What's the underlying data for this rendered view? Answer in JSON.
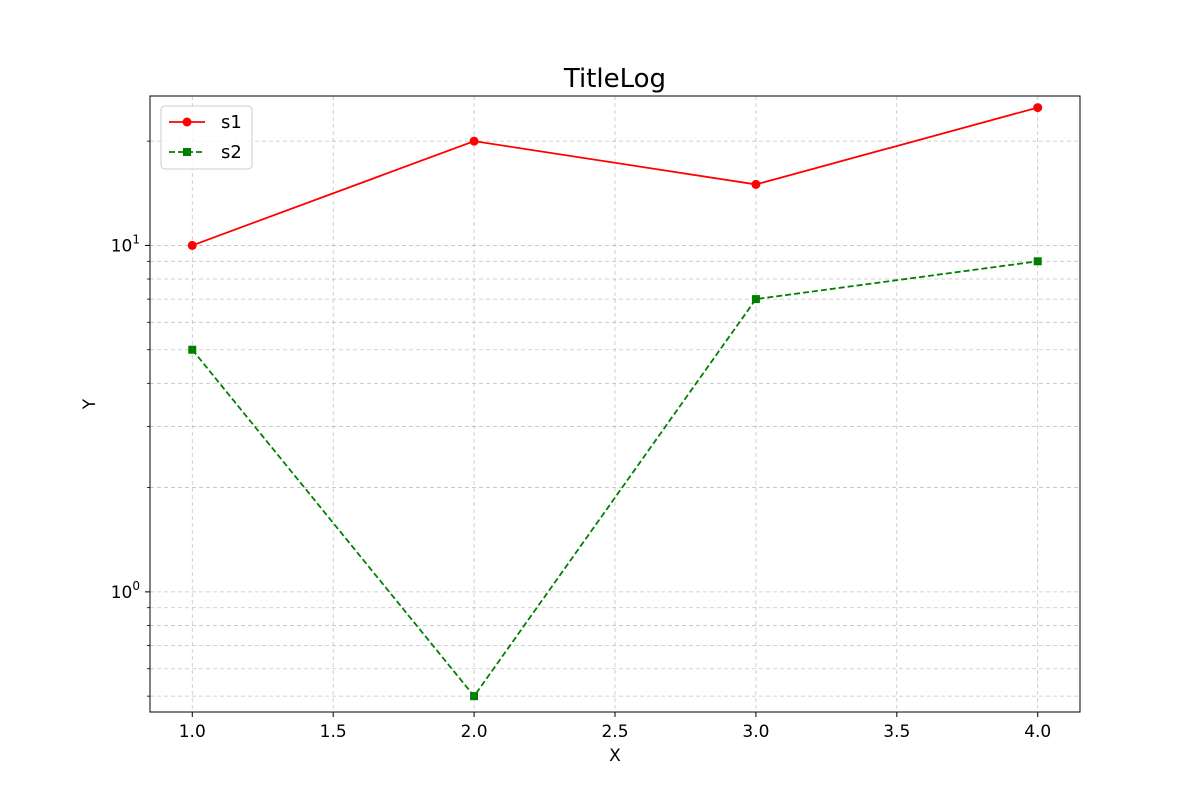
{
  "chart_data": {
    "type": "line",
    "title": "TitleLog",
    "xlabel": "X",
    "ylabel": "Y",
    "x": [
      1.0,
      2.0,
      3.0,
      4.0
    ],
    "xlim": [
      0.85,
      4.15
    ],
    "ylim": [
      0.45,
      27
    ],
    "yscale": "log",
    "grid": true,
    "legend_position": "top-left",
    "x_ticks": [
      {
        "value": 1.0,
        "label": "1.0"
      },
      {
        "value": 1.5,
        "label": "1.5"
      },
      {
        "value": 2.0,
        "label": "2.0"
      },
      {
        "value": 2.5,
        "label": "2.5"
      },
      {
        "value": 3.0,
        "label": "3.0"
      },
      {
        "value": 3.5,
        "label": "3.5"
      },
      {
        "value": 4.0,
        "label": "4.0"
      }
    ],
    "y_major_ticks": [
      {
        "value": 1,
        "base": "10",
        "exponent": "0"
      },
      {
        "value": 10,
        "base": "10",
        "exponent": "1"
      }
    ],
    "y_minor_ticks": [
      0.5,
      0.6,
      0.7,
      0.8,
      0.9,
      2,
      3,
      4,
      5,
      6,
      7,
      8,
      9,
      20
    ],
    "series": [
      {
        "name": "s1",
        "values": [
          10,
          20,
          15,
          25
        ],
        "color": "#ff0000",
        "line_style": "solid",
        "marker": "circle"
      },
      {
        "name": "s2",
        "values": [
          5,
          0.5,
          7,
          9
        ],
        "color": "#008000",
        "line_style": "dashed",
        "marker": "square"
      }
    ]
  }
}
